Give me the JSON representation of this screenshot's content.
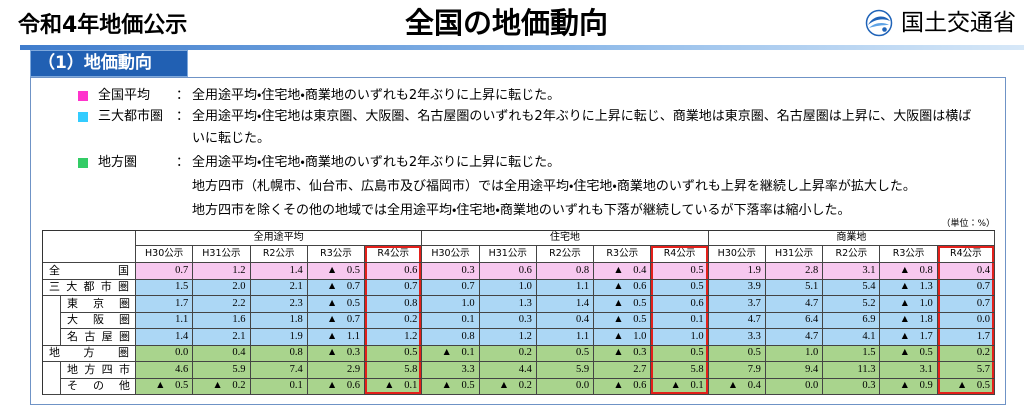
{
  "header": {
    "report_title": "令和4年地価公示",
    "page_title": "全国の地価動向",
    "organization": "国土交通省",
    "logo_icon": "mlit-logo-icon"
  },
  "section": {
    "heading": "（1）地価動向"
  },
  "summary": [
    {
      "category": "全国平均",
      "colon": "：",
      "color": "#ff33cc",
      "lines": [
        "全用途平均・住宅地・商業地のいずれも2年ぶりに上昇に転じた。"
      ]
    },
    {
      "category": "三大都市圏",
      "colon": "：",
      "color": "#33ccff",
      "lines": [
        "全用途平均・住宅地は東京圏、大阪圏、名古屋圏のいずれも2年ぶりに上昇に転じ、商業地は東京圏、名古屋圏は上昇に、大阪圏は横ば",
        "いに転じた。"
      ]
    },
    {
      "category": "地方圏",
      "colon": "：",
      "color": "#33cc66",
      "lines": [
        "全用途平均・住宅地・商業地のいずれも2年ぶりに上昇に転じた。",
        "地方四市（札幌市、仙台市、広島市及び福岡市）では全用途平均・住宅地・商業地のいずれも上昇を継続し上昇率が拡大した。",
        "地方四市を除くその他の地域では全用途平均・住宅地・商業地のいずれも下落が継続しているが下落率は縮小した。"
      ]
    }
  ],
  "table": {
    "unit": "（単位：%）",
    "groups": [
      "全用途平均",
      "住宅地",
      "商業地"
    ],
    "periods": [
      "H30公示",
      "H31公示",
      "R2公示",
      "R3公示",
      "R4公示"
    ],
    "highlight_period": "R4公示",
    "highlight_color": "#e3201b",
    "rows": [
      {
        "label": "全国",
        "indent": false,
        "color": "#f7c8ef",
        "values": [
          "0.7",
          "1.2",
          "1.4",
          "▲ 0.5",
          "0.6",
          "0.3",
          "0.6",
          "0.8",
          "▲ 0.4",
          "0.5",
          "1.9",
          "2.8",
          "3.1",
          "▲ 0.8",
          "0.4"
        ]
      },
      {
        "label": "三大都市圏",
        "indent": false,
        "color": "#acd7f5",
        "values": [
          "1.5",
          "2.0",
          "2.1",
          "▲ 0.7",
          "0.7",
          "0.7",
          "1.0",
          "1.1",
          "▲ 0.6",
          "0.5",
          "3.9",
          "5.1",
          "5.4",
          "▲ 1.3",
          "0.7"
        ]
      },
      {
        "label": "東京圏",
        "indent": true,
        "color": "#acd7f5",
        "values": [
          "1.7",
          "2.2",
          "2.3",
          "▲ 0.5",
          "0.8",
          "1.0",
          "1.3",
          "1.4",
          "▲ 0.5",
          "0.6",
          "3.7",
          "4.7",
          "5.2",
          "▲ 1.0",
          "0.7"
        ]
      },
      {
        "label": "大阪圏",
        "indent": true,
        "color": "#acd7f5",
        "values": [
          "1.1",
          "1.6",
          "1.8",
          "▲ 0.7",
          "0.2",
          "0.1",
          "0.3",
          "0.4",
          "▲ 0.5",
          "0.1",
          "4.7",
          "6.4",
          "6.9",
          "▲ 1.8",
          "0.0"
        ]
      },
      {
        "label": "名古屋圏",
        "indent": true,
        "color": "#acd7f5",
        "values": [
          "1.4",
          "2.1",
          "1.9",
          "▲ 1.1",
          "1.2",
          "0.8",
          "1.2",
          "1.1",
          "▲ 1.0",
          "1.0",
          "3.3",
          "4.7",
          "4.1",
          "▲ 1.7",
          "1.7"
        ]
      },
      {
        "label": "地方圏",
        "indent": false,
        "color": "#a9d48d",
        "values": [
          "0.0",
          "0.4",
          "0.8",
          "▲ 0.3",
          "0.5",
          "▲ 0.1",
          "0.2",
          "0.5",
          "▲ 0.3",
          "0.5",
          "0.5",
          "1.0",
          "1.5",
          "▲ 0.5",
          "0.2"
        ]
      },
      {
        "label": "地方四市",
        "indent": true,
        "color": "#a9d48d",
        "values": [
          "4.6",
          "5.9",
          "7.4",
          "2.9",
          "5.8",
          "3.3",
          "4.4",
          "5.9",
          "2.7",
          "5.8",
          "7.9",
          "9.4",
          "11.3",
          "3.1",
          "5.7"
        ]
      },
      {
        "label": "その他",
        "indent": true,
        "color": "#a9d48d",
        "values": [
          "▲ 0.5",
          "▲ 0.2",
          "0.1",
          "▲ 0.6",
          "▲ 0.1",
          "▲ 0.5",
          "▲ 0.2",
          "0.0",
          "▲ 0.6",
          "▲ 0.1",
          "▲ 0.4",
          "0.0",
          "0.3",
          "▲ 0.9",
          "▲ 0.5"
        ]
      }
    ]
  }
}
